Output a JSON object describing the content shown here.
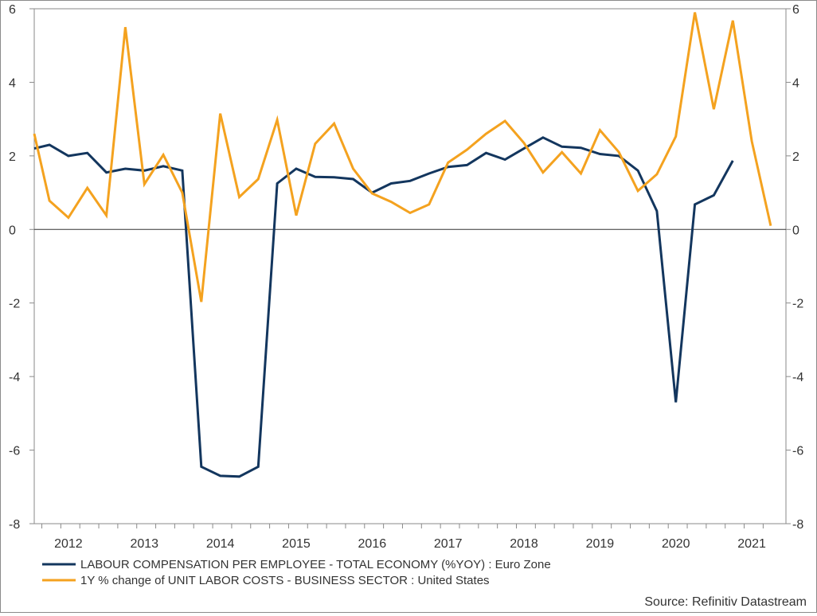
{
  "chart_data": {
    "type": "line",
    "title": "",
    "xlabel": "",
    "ylabel": "",
    "ylim": [
      -8,
      6
    ],
    "y_ticks": [
      -8,
      -6,
      -4,
      -2,
      0,
      2,
      4,
      6
    ],
    "y_tick_labels": [
      "-8",
      "-6",
      "-4",
      "-2",
      "0",
      "2",
      "4",
      "6"
    ],
    "x_range": [
      2011.4,
      2021.3
    ],
    "x_ticks": [
      2011.5,
      2011.75,
      2012,
      2012.25,
      2012.5,
      2012.75,
      2013,
      2013.25,
      2013.5,
      2013.75,
      2014,
      2014.25,
      2014.5,
      2014.75,
      2015,
      2015.25,
      2015.5,
      2015.75,
      2016,
      2016.25,
      2016.5,
      2016.75,
      2017,
      2017.25,
      2017.5,
      2017.75,
      2018,
      2018.25,
      2018.5,
      2018.75,
      2019,
      2019.25,
      2019.5,
      2019.75,
      2020,
      2020.25,
      2020.5,
      2020.75,
      2021
    ],
    "year_labels": [
      {
        "x": 2011.85,
        "label": "2012"
      },
      {
        "x": 2012.85,
        "label": "2013"
      },
      {
        "x": 2013.85,
        "label": "2014"
      },
      {
        "x": 2014.85,
        "label": "2015"
      },
      {
        "x": 2015.85,
        "label": "2016"
      },
      {
        "x": 2016.85,
        "label": "2017"
      },
      {
        "x": 2017.85,
        "label": "2018"
      },
      {
        "x": 2018.85,
        "label": "2019"
      },
      {
        "x": 2019.85,
        "label": "2020"
      },
      {
        "x": 2020.85,
        "label": "2021"
      }
    ],
    "series": [
      {
        "name": "LABOUR COMPENSATION PER EMPLOYEE - TOTAL ECONOMY (%YOY) : Euro Zone",
        "color": "#13365e",
        "x": [
          2011.4,
          2011.6,
          2011.85,
          2012.1,
          2012.35,
          2012.6,
          2012.85,
          2013.1,
          2013.35,
          2013.6,
          2013.85,
          2014.1,
          2014.35,
          2014.6,
          2014.85,
          2015.1,
          2015.35,
          2015.6,
          2015.85,
          2016.1,
          2016.35,
          2016.6,
          2016.85,
          2017.1,
          2017.35,
          2017.6,
          2017.85,
          2018.1,
          2018.35,
          2018.6,
          2018.85,
          2019.1,
          2019.35,
          2019.6,
          2019.85,
          2020.1,
          2020.35,
          2020.6
        ],
        "y": [
          2.2,
          2.3,
          2.0,
          2.08,
          1.55,
          1.65,
          1.6,
          1.72,
          1.6,
          -6.45,
          -6.7,
          -6.72,
          -6.45,
          1.25,
          1.65,
          1.43,
          1.42,
          1.37,
          1.0,
          1.25,
          1.32,
          1.52,
          1.7,
          1.75,
          2.08,
          1.9,
          2.2,
          2.5,
          2.25,
          2.22,
          2.05,
          2.0,
          1.6,
          0.5,
          -4.7,
          0.68,
          0.93,
          1.87
        ]
      },
      {
        "name": "1Y % change of UNIT LABOR COSTS - BUSINESS SECTOR : United States",
        "color": "#f4a21f",
        "x": [
          2011.4,
          2011.6,
          2011.85,
          2012.1,
          2012.35,
          2012.6,
          2012.85,
          2013.1,
          2013.35,
          2013.6,
          2013.85,
          2014.1,
          2014.35,
          2014.6,
          2014.85,
          2015.1,
          2015.35,
          2015.6,
          2015.85,
          2016.1,
          2016.35,
          2016.6,
          2016.85,
          2017.1,
          2017.35,
          2017.6,
          2017.85,
          2018.1,
          2018.35,
          2018.6,
          2018.85,
          2019.1,
          2019.35,
          2019.6,
          2019.85,
          2020.1,
          2020.35,
          2020.6,
          2020.85,
          2021.1
        ],
        "y": [
          2.6,
          0.78,
          0.32,
          1.13,
          0.38,
          5.5,
          1.23,
          2.03,
          1.0,
          -1.97,
          3.15,
          0.88,
          1.37,
          2.98,
          0.38,
          2.33,
          2.88,
          1.65,
          0.98,
          0.75,
          0.45,
          0.68,
          1.82,
          2.17,
          2.6,
          2.95,
          2.35,
          1.55,
          2.1,
          1.52,
          2.7,
          2.1,
          1.05,
          1.5,
          2.53,
          5.9,
          3.27,
          5.68,
          2.4,
          0.1
        ]
      }
    ],
    "legend_position": "bottom-left",
    "source": "Source: Refinitiv Datastream"
  }
}
